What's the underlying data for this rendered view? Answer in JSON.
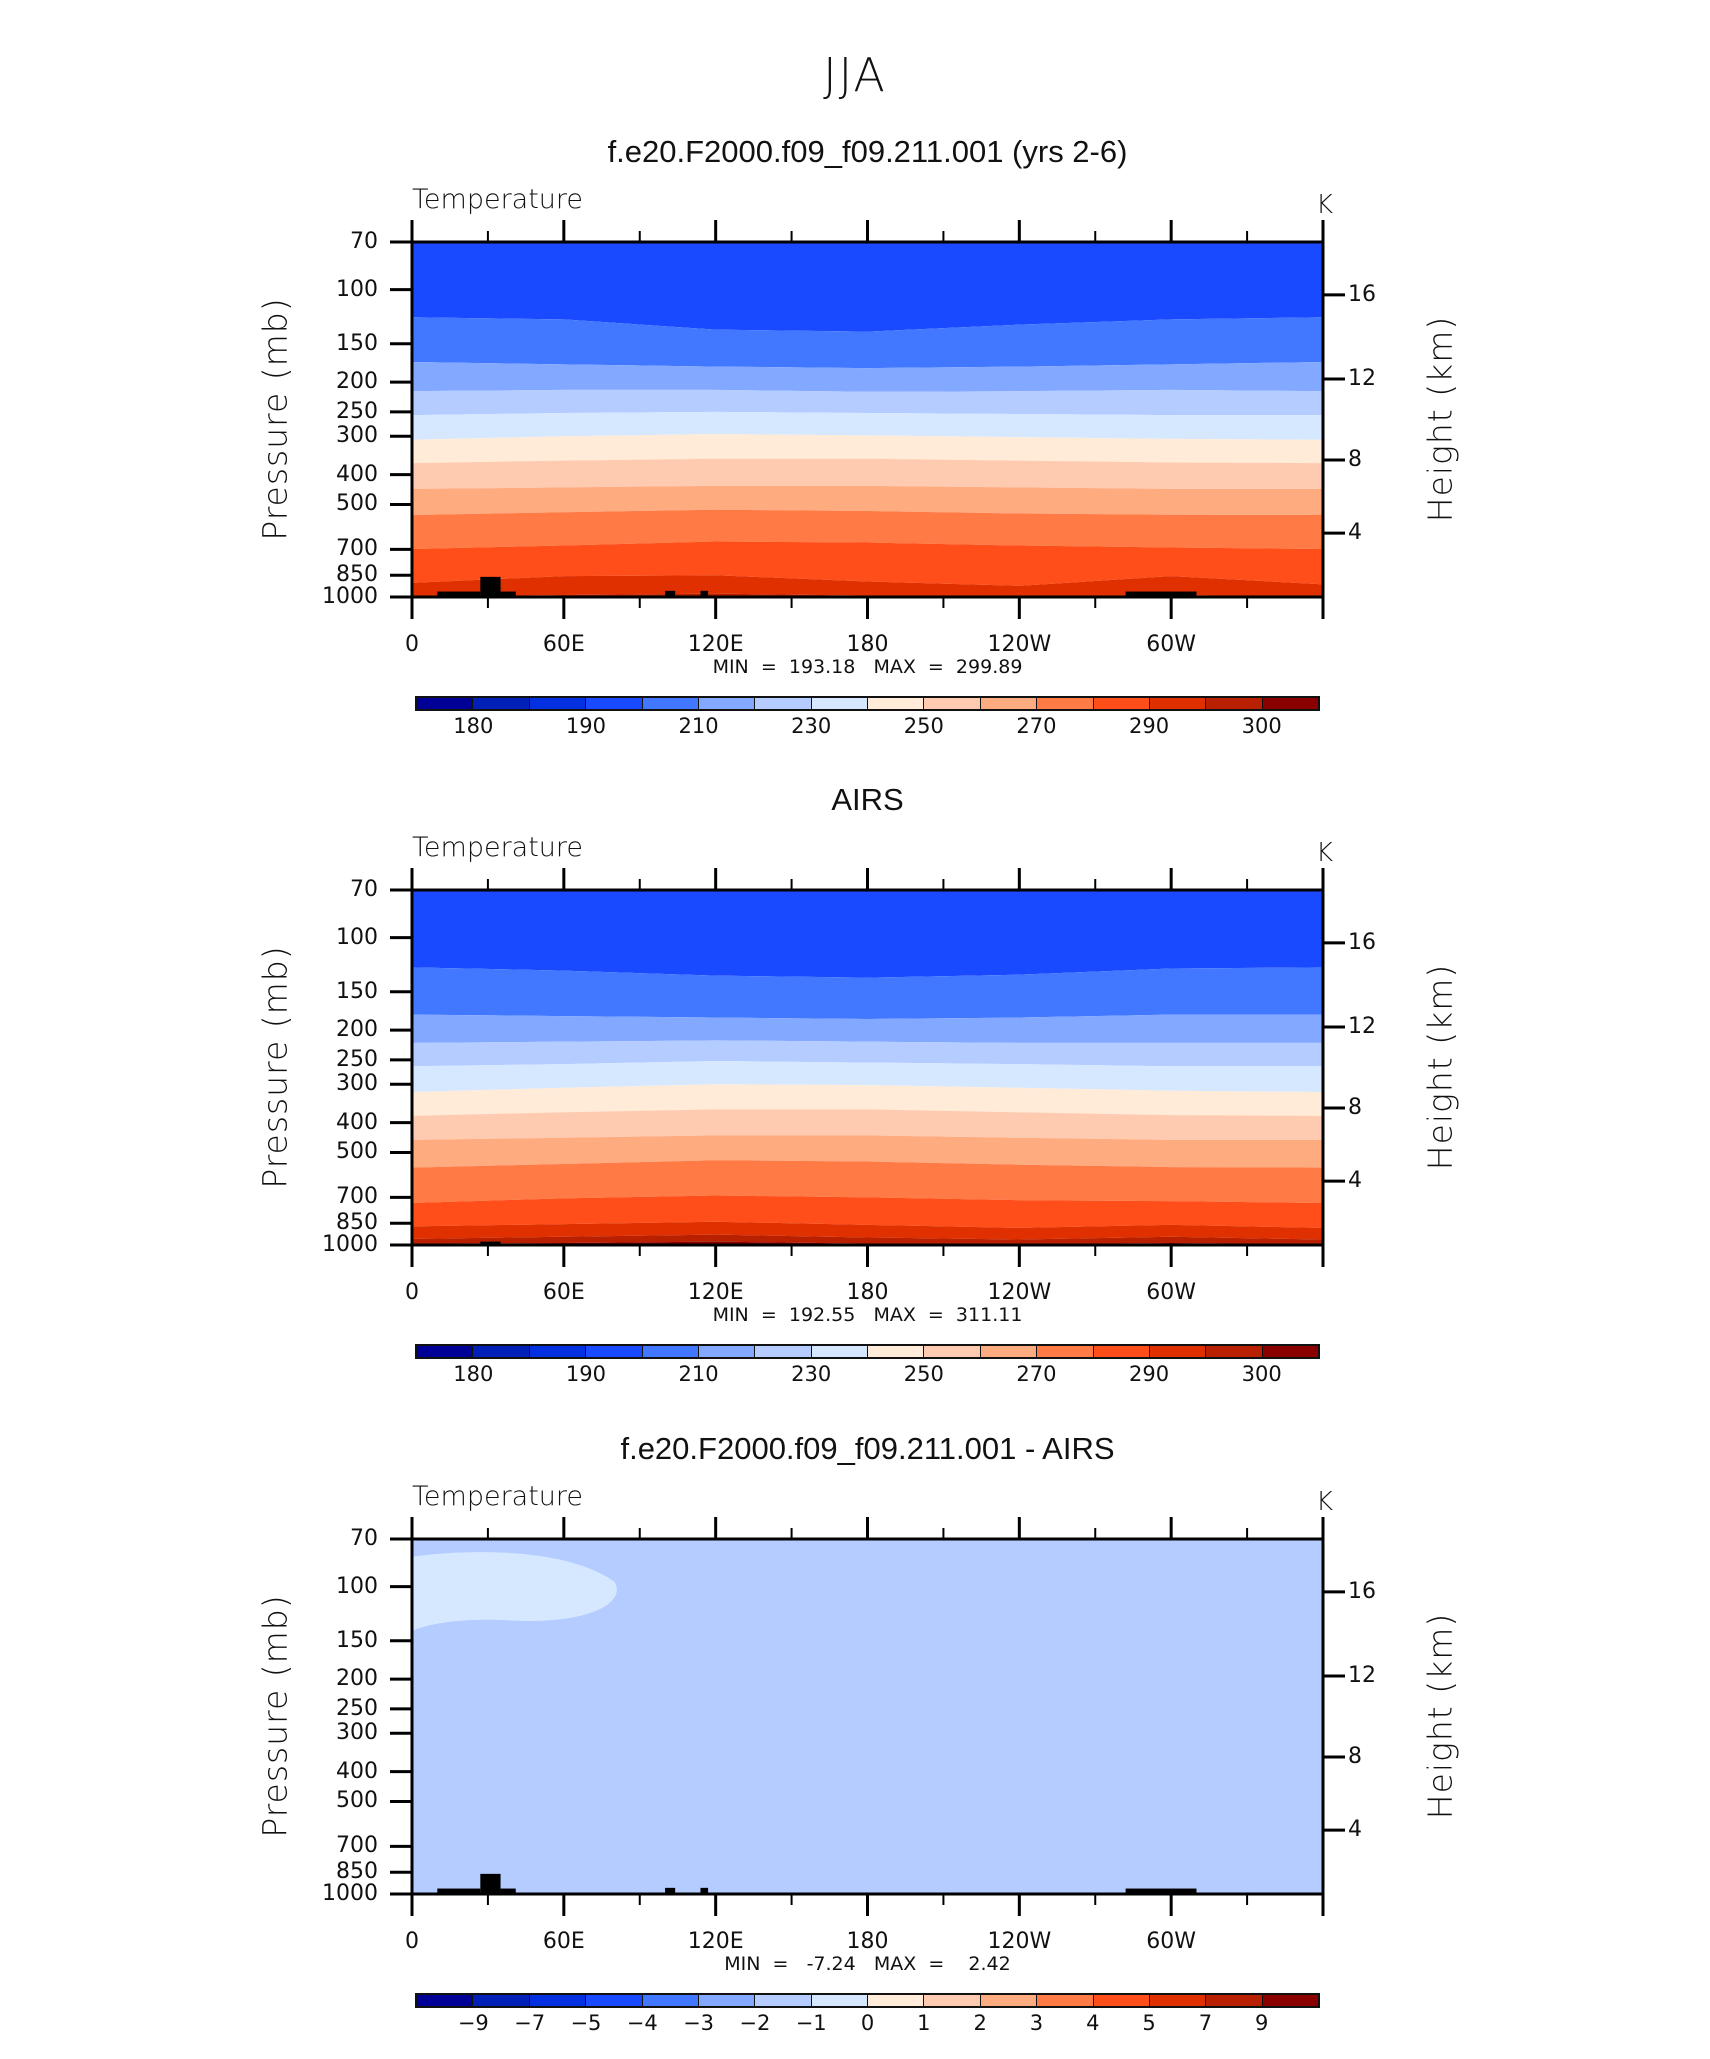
{
  "main_title": "JJA",
  "palette": [
    "#000096",
    "#0020b8",
    "#0030e0",
    "#1a4aff",
    "#4278ff",
    "#82a8ff",
    "#b4ccff",
    "#d6e8ff",
    "#ffebd8",
    "#ffcbb0",
    "#ffab80",
    "#ff7a45",
    "#ff4e1a",
    "#e03000",
    "#b82000",
    "#8a0000"
  ],
  "chart_data": [
    {
      "type": "heatmap",
      "title": "f.e20.F2000.f09_f09.211.001 (yrs 2-6)",
      "variable": "Temperature",
      "units": "K",
      "ylabel": "Pressure (mb)",
      "ylabel_right": "Height (km)",
      "xticks": [
        "0",
        "60E",
        "120E",
        "180",
        "120W",
        "60W"
      ],
      "yticks": [
        "70",
        "100",
        "150",
        "200",
        "250",
        "300",
        "400",
        "500",
        "700",
        "850",
        "1000"
      ],
      "ytick_values": [
        70,
        100,
        150,
        200,
        250,
        300,
        400,
        500,
        700,
        850,
        1000
      ],
      "hticks": [
        "16",
        "12",
        "8",
        "4"
      ],
      "ylim": [
        1000,
        70
      ],
      "xlim": [
        0,
        360
      ],
      "stats": "MIN  =  193.18   MAX  =  299.89",
      "colorbar_levels": [
        180,
        185,
        190,
        200,
        210,
        220,
        230,
        240,
        250,
        260,
        270,
        280,
        290,
        295,
        300
      ],
      "colorbar_labels": [
        "180",
        "",
        "190",
        "",
        "210",
        "",
        "230",
        "",
        "250",
        "",
        "270",
        "",
        "290",
        "",
        "300"
      ],
      "boundary_lons": [
        0,
        60,
        120,
        180,
        240,
        300,
        360
      ],
      "top_band_index": 3,
      "boundaries": [
        {
          "level": 200,
          "p": [
            123,
            125,
            135,
            137,
            130,
            125,
            123
          ]
        },
        {
          "level": 210,
          "p": [
            172,
            175,
            178,
            180,
            178,
            175,
            172
          ]
        },
        {
          "level": 220,
          "p": [
            214,
            212,
            212,
            215,
            214,
            212,
            214
          ]
        },
        {
          "level": 230,
          "p": [
            256,
            252,
            250,
            252,
            254,
            256,
            256
          ]
        },
        {
          "level": 240,
          "p": [
            308,
            300,
            295,
            298,
            302,
            306,
            308
          ]
        },
        {
          "level": 250,
          "p": [
            367,
            360,
            355,
            355,
            360,
            365,
            367
          ]
        },
        {
          "level": 260,
          "p": [
            445,
            440,
            435,
            435,
            440,
            445,
            445
          ]
        },
        {
          "level": 270,
          "p": [
            541,
            530,
            520,
            525,
            535,
            540,
            541
          ]
        },
        {
          "level": 280,
          "p": [
            698,
            680,
            660,
            665,
            680,
            690,
            698
          ]
        },
        {
          "level": 290,
          "p": [
            900,
            855,
            850,
            890,
            920,
            855,
            910
          ]
        },
        {
          "level": 295,
          "p": [
            1000,
            985,
            975,
            990,
            1000,
            985,
            1000
          ]
        }
      ],
      "terrain": [
        [
          10,
          27,
          960
        ],
        [
          27,
          35,
          860
        ],
        [
          35,
          41,
          960
        ],
        [
          100,
          104,
          955
        ],
        [
          114,
          117,
          955
        ],
        [
          282,
          310,
          960
        ]
      ]
    },
    {
      "type": "heatmap",
      "title": "AIRS",
      "variable": "Temperature",
      "units": "K",
      "ylabel": "Pressure (mb)",
      "ylabel_right": "Height (km)",
      "xticks": [
        "0",
        "60E",
        "120E",
        "180",
        "120W",
        "60W"
      ],
      "yticks": [
        "70",
        "100",
        "150",
        "200",
        "250",
        "300",
        "400",
        "500",
        "700",
        "850",
        "1000"
      ],
      "ytick_values": [
        70,
        100,
        150,
        200,
        250,
        300,
        400,
        500,
        700,
        850,
        1000
      ],
      "hticks": [
        "16",
        "12",
        "8",
        "4"
      ],
      "ylim": [
        1000,
        70
      ],
      "xlim": [
        0,
        360
      ],
      "stats": "MIN  =  192.55   MAX  =  311.11",
      "colorbar_levels": [
        180,
        185,
        190,
        200,
        210,
        220,
        230,
        240,
        250,
        260,
        270,
        280,
        290,
        295,
        300
      ],
      "colorbar_labels": [
        "180",
        "",
        "190",
        "",
        "210",
        "",
        "230",
        "",
        "250",
        "",
        "270",
        "",
        "290",
        "",
        "300"
      ],
      "boundary_lons": [
        0,
        60,
        120,
        180,
        240,
        300,
        360
      ],
      "top_band_index": 3,
      "boundaries": [
        {
          "level": 200,
          "p": [
            125,
            128,
            133,
            135,
            132,
            126,
            125
          ]
        },
        {
          "level": 210,
          "p": [
            178,
            180,
            182,
            184,
            182,
            178,
            178
          ]
        },
        {
          "level": 220,
          "p": [
            220,
            218,
            216,
            218,
            220,
            220,
            220
          ]
        },
        {
          "level": 230,
          "p": [
            262,
            258,
            252,
            255,
            258,
            262,
            262
          ]
        },
        {
          "level": 240,
          "p": [
            318,
            308,
            300,
            302,
            308,
            315,
            318
          ]
        },
        {
          "level": 250,
          "p": [
            380,
            370,
            362,
            362,
            370,
            378,
            380
          ]
        },
        {
          "level": 260,
          "p": [
            455,
            448,
            440,
            440,
            448,
            455,
            455
          ]
        },
        {
          "level": 270,
          "p": [
            560,
            545,
            530,
            535,
            548,
            558,
            560
          ]
        },
        {
          "level": 280,
          "p": [
            730,
            705,
            690,
            700,
            715,
            720,
            730
          ]
        },
        {
          "level": 290,
          "p": [
            870,
            855,
            840,
            860,
            880,
            860,
            880
          ]
        },
        {
          "level": 295,
          "p": [
            955,
            940,
            925,
            945,
            960,
            940,
            960
          ]
        },
        {
          "level": 300,
          "p": [
            990,
            985,
            975,
            990,
            995,
            985,
            995
          ]
        }
      ],
      "terrain": [
        [
          27,
          35,
          975
        ]
      ]
    },
    {
      "type": "heatmap",
      "title": "f.e20.F2000.f09_f09.211.001 - AIRS",
      "variable": "Temperature",
      "units": "K",
      "ylabel": "Pressure (mb)",
      "ylabel_right": "Height (km)",
      "xticks": [
        "0",
        "60E",
        "120E",
        "180",
        "120W",
        "60W"
      ],
      "yticks": [
        "70",
        "100",
        "150",
        "200",
        "250",
        "300",
        "400",
        "500",
        "700",
        "850",
        "1000"
      ],
      "ytick_values": [
        70,
        100,
        150,
        200,
        250,
        300,
        400,
        500,
        700,
        850,
        1000
      ],
      "hticks": [
        "16",
        "12",
        "8",
        "4"
      ],
      "ylim": [
        1000,
        70
      ],
      "xlim": [
        0,
        360
      ],
      "stats": "MIN  =   -7.24   MAX  =    2.42",
      "colorbar_levels": [
        -9,
        -7,
        -5,
        -4,
        -3,
        -2,
        -1,
        0,
        1,
        2,
        3,
        4,
        5,
        7,
        9
      ],
      "colorbar_labels": [
        "−9",
        "−7",
        "−5",
        "−4",
        "−3",
        "−2",
        "−1",
        "0",
        "1",
        "2",
        "3",
        "4",
        "5",
        "7",
        "9"
      ],
      "background_band_index": 6,
      "terrain": [
        [
          10,
          27,
          960
        ],
        [
          27,
          35,
          860
        ],
        [
          35,
          41,
          960
        ],
        [
          100,
          104,
          955
        ],
        [
          114,
          117,
          955
        ],
        [
          282,
          310,
          960
        ]
      ]
    }
  ]
}
